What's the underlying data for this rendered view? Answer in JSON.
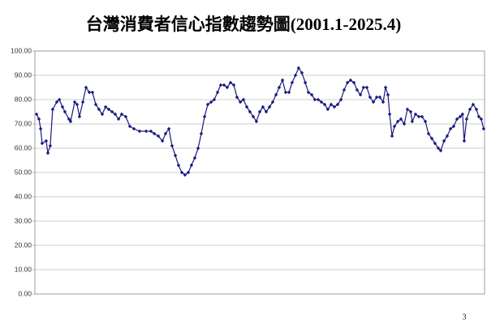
{
  "chart_data": {
    "type": "line",
    "title": "台灣消費者信心指數趨勢圖(2001.1-2025.4)",
    "xlim": [
      2001,
      2025.3
    ],
    "ylim": [
      0,
      100
    ],
    "yticks": [
      {
        "value": 0,
        "label": "0.00"
      },
      {
        "value": 10,
        "label": "10.00"
      },
      {
        "value": 20,
        "label": "20.00"
      },
      {
        "value": 30,
        "label": "30.00"
      },
      {
        "value": 40,
        "label": "40.00"
      },
      {
        "value": 50,
        "label": "50.00"
      },
      {
        "value": 60,
        "label": "60.00"
      },
      {
        "value": 70,
        "label": "70.00"
      },
      {
        "value": 80,
        "label": "80.00"
      },
      {
        "value": 90,
        "label": "90.00"
      },
      {
        "value": 100,
        "label": "100.00"
      }
    ],
    "grid": true,
    "color": "#1a1a80",
    "x": [
      2001.09,
      2001.22,
      2001.31,
      2001.39,
      2001.61,
      2001.7,
      2001.83,
      2001.96,
      2002.18,
      2002.32,
      2002.49,
      2002.62,
      2002.84,
      2002.93,
      2003.15,
      2003.28,
      2003.41,
      2003.59,
      2003.76,
      2003.94,
      2004.11,
      2004.29,
      2004.46,
      2004.64,
      2004.82,
      2004.99,
      2005.17,
      2005.34,
      2005.52,
      2005.69,
      2005.91,
      2006.13,
      2006.35,
      2006.66,
      2007.01,
      2007.27,
      2007.45,
      2007.67,
      2007.89,
      2008.06,
      2008.24,
      2008.41,
      2008.59,
      2008.76,
      2008.94,
      2009.11,
      2009.29,
      2009.46,
      2009.64,
      2009.82,
      2009.99,
      2010.17,
      2010.34,
      2010.52,
      2010.69,
      2010.87,
      2011.04,
      2011.22,
      2011.39,
      2011.57,
      2011.75,
      2011.92,
      2012.1,
      2012.27,
      2012.45,
      2012.62,
      2012.8,
      2012.97,
      2013.15,
      2013.32,
      2013.5,
      2013.68,
      2013.85,
      2014.03,
      2014.2,
      2014.38,
      2014.55,
      2014.73,
      2014.9,
      2015.08,
      2015.25,
      2015.43,
      2015.61,
      2015.78,
      2015.96,
      2016.13,
      2016.31,
      2016.48,
      2016.66,
      2016.83,
      2017.01,
      2017.18,
      2017.36,
      2017.54,
      2017.71,
      2017.89,
      2018.06,
      2018.24,
      2018.41,
      2018.59,
      2018.76,
      2018.94,
      2019.11,
      2019.29,
      2019.47,
      2019.64,
      2019.82,
      2019.95,
      2020.08,
      2020.17,
      2020.3,
      2020.43,
      2020.61,
      2020.78,
      2020.96,
      2021.13,
      2021.31,
      2021.39,
      2021.57,
      2021.75,
      2021.92,
      2022.1,
      2022.27,
      2022.45,
      2022.62,
      2022.8,
      2022.93,
      2023.11,
      2023.28,
      2023.46,
      2023.63,
      2023.81,
      2023.98,
      2024.11,
      2024.2,
      2024.33,
      2024.51,
      2024.68,
      2024.86,
      2024.99,
      2025.12,
      2025.25
    ],
    "values": [
      74,
      72,
      68,
      62,
      63,
      58,
      61,
      76,
      79,
      80,
      77,
      75,
      72,
      71,
      79,
      78,
      73,
      79,
      85,
      83,
      83,
      78,
      76,
      74,
      77,
      76,
      75,
      74,
      72,
      74,
      73,
      69,
      68,
      67,
      67,
      67,
      66,
      65,
      63,
      66,
      68,
      61,
      57,
      53,
      50,
      49,
      50,
      53,
      56,
      60,
      66,
      73,
      78,
      79,
      80,
      83,
      86,
      86,
      85,
      87,
      86,
      81,
      79,
      80,
      77,
      75,
      73,
      71,
      75,
      77,
      75,
      77,
      79,
      82,
      85,
      88,
      83,
      83,
      87,
      90,
      93,
      91,
      87,
      83,
      82,
      80,
      80,
      79,
      78,
      76,
      78,
      77,
      78,
      80,
      84,
      87,
      88,
      87,
      84,
      82,
      85,
      85,
      81,
      79,
      81,
      81,
      79,
      85,
      82,
      74,
      65,
      69,
      71,
      72,
      70,
      76,
      75,
      71,
      74,
      73,
      73,
      71,
      66,
      64,
      62,
      60,
      59,
      63,
      65,
      68,
      69,
      72,
      73,
      74,
      63,
      72,
      76,
      78,
      76,
      73,
      72,
      68
    ]
  },
  "page_number": "3"
}
